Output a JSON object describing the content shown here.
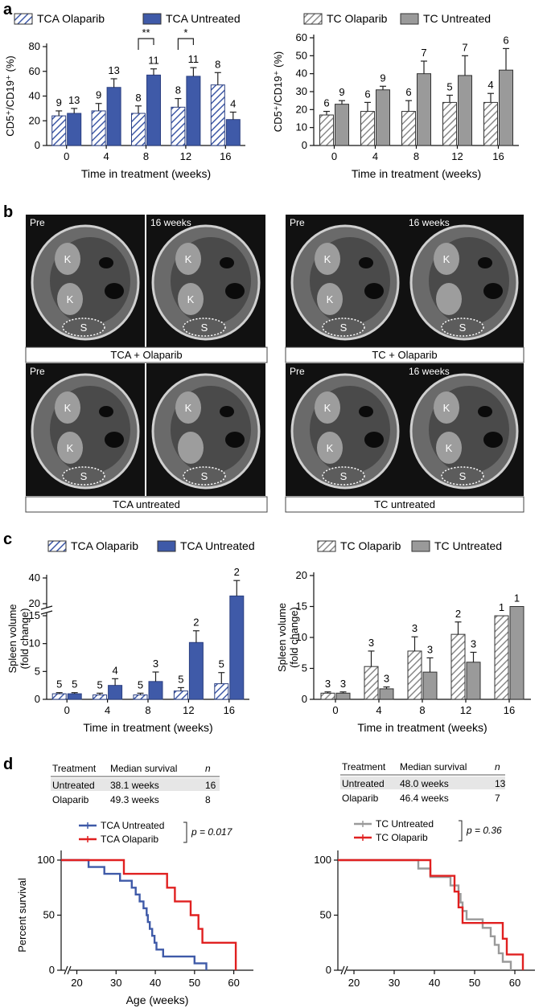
{
  "panels": {
    "a": "a",
    "b": "b",
    "c": "c",
    "d": "d"
  },
  "colors": {
    "tca": "#3f5aa8",
    "tc": "#9a9a9a",
    "untreated_line": "#3f5aa8",
    "olaparib_line": "#e02020",
    "tc_untreated_line": "#9a9a9a"
  },
  "chart_data": [
    {
      "id": "a_left",
      "type": "bar",
      "legend": [
        "TCA Olaparib",
        "TCA Untreated"
      ],
      "xlabel": "Time in treatment (weeks)",
      "ylabel": "CD5⁺/CD19⁺ (%)",
      "categories": [
        "0",
        "4",
        "8",
        "12",
        "16"
      ],
      "ylim": [
        0,
        80
      ],
      "yticks": [
        0,
        20,
        40,
        60,
        80
      ],
      "series": [
        {
          "name": "TCA Olaparib",
          "values": [
            24,
            28,
            26,
            31,
            49
          ],
          "errors": [
            4,
            6,
            6,
            7,
            10
          ],
          "n": [
            "9",
            "9",
            "8",
            "8",
            "8"
          ]
        },
        {
          "name": "TCA Untreated",
          "values": [
            26,
            47,
            57,
            56,
            21
          ],
          "errors": [
            4,
            7,
            5,
            7,
            6
          ],
          "n": [
            "13",
            "13",
            "11",
            "11",
            "4"
          ]
        }
      ],
      "significance": [
        {
          "category": "8",
          "label": "**"
        },
        {
          "category": "12",
          "label": "*"
        }
      ]
    },
    {
      "id": "a_right",
      "type": "bar",
      "legend": [
        "TC Olaparib",
        "TC Untreated"
      ],
      "xlabel": "Time in treatment (weeks)",
      "ylabel": "CD5⁺/CD19⁺ (%)",
      "categories": [
        "0",
        "4",
        "8",
        "12",
        "16"
      ],
      "ylim": [
        0,
        60
      ],
      "yticks": [
        0,
        10,
        20,
        30,
        40,
        50,
        60
      ],
      "series": [
        {
          "name": "TC Olaparib",
          "values": [
            17,
            19,
            19,
            24,
            24
          ],
          "errors": [
            2,
            5,
            6,
            4,
            5
          ],
          "n": [
            "6",
            "6",
            "6",
            "5",
            "4"
          ]
        },
        {
          "name": "TC Untreated",
          "values": [
            23,
            31,
            40,
            39,
            42
          ],
          "errors": [
            2,
            2,
            7,
            11,
            12
          ],
          "n": [
            "9",
            "9",
            "7",
            "7",
            "6"
          ]
        }
      ]
    },
    {
      "id": "c_left",
      "type": "bar",
      "legend": [
        "TCA Olaparib",
        "TCA Untreated"
      ],
      "xlabel": "Time in treatment (weeks)",
      "ylabel": "Spleen volume (fold change)",
      "categories": [
        "0",
        "4",
        "8",
        "12",
        "16"
      ],
      "ylim": [
        0,
        40
      ],
      "yticks": [
        "0",
        "5",
        "10",
        "15",
        "20",
        "40"
      ],
      "axis_break": [
        15,
        20
      ],
      "series": [
        {
          "name": "TCA Olaparib",
          "values": [
            1.0,
            0.8,
            0.8,
            1.5,
            2.8
          ],
          "errors": [
            0.2,
            0.3,
            0.3,
            0.6,
            2.0
          ],
          "n": [
            "5",
            "5",
            "5",
            "5",
            "5"
          ]
        },
        {
          "name": "TCA Untreated",
          "values": [
            1.0,
            2.5,
            3.2,
            10.2,
            26
          ],
          "errors": [
            0.2,
            1.2,
            1.7,
            2.1,
            12
          ],
          "n": [
            "5",
            "4",
            "3",
            "2",
            "2"
          ]
        }
      ]
    },
    {
      "id": "c_right",
      "type": "bar",
      "legend": [
        "TC Olaparib",
        "TC Untreated"
      ],
      "xlabel": "Time in treatment (weeks)",
      "ylabel": "Spleen volume (fold change)",
      "categories": [
        "0",
        "4",
        "8",
        "12",
        "16"
      ],
      "ylim": [
        0,
        20
      ],
      "yticks": [
        0,
        5,
        10,
        15,
        20
      ],
      "series": [
        {
          "name": "TC Olaparib",
          "values": [
            1.0,
            5.3,
            7.8,
            10.5,
            13.5
          ],
          "errors": [
            0.2,
            2.5,
            2.3,
            2.0,
            0
          ],
          "n": [
            "3",
            "3",
            "3",
            "2",
            "1"
          ]
        },
        {
          "name": "TC Untreated",
          "values": [
            1.0,
            1.7,
            4.4,
            6.0,
            15
          ],
          "errors": [
            0.2,
            0.3,
            2.3,
            1.6,
            0
          ],
          "n": [
            "3",
            "3",
            "3",
            "3",
            "1"
          ]
        }
      ]
    },
    {
      "id": "d_left",
      "type": "line",
      "subtype": "kaplan-meier",
      "xlabel": "Age (weeks)",
      "ylabel": "Percent survival",
      "xlim": [
        16,
        65
      ],
      "xticks": [
        20,
        30,
        40,
        50,
        60
      ],
      "ylim": [
        0,
        100
      ],
      "yticks": [
        0,
        50,
        100
      ],
      "pvalue": "p = 0.017",
      "table": {
        "headers": [
          "Treatment",
          "Median survival",
          "n"
        ],
        "rows": [
          [
            "Untreated",
            "38.1 weeks",
            "16"
          ],
          [
            "Olaparib",
            "49.3 weeks",
            "8"
          ]
        ]
      },
      "series": [
        {
          "name": "TCA Untreated",
          "color": "#3f5aa8",
          "steps": [
            [
              16,
              100
            ],
            [
              23,
              100
            ],
            [
              23,
              93.75
            ],
            [
              27,
              93.75
            ],
            [
              27,
              87.5
            ],
            [
              31,
              87.5
            ],
            [
              31,
              81.25
            ],
            [
              34,
              81.25
            ],
            [
              34,
              75
            ],
            [
              35,
              75
            ],
            [
              35,
              68.75
            ],
            [
              36,
              68.75
            ],
            [
              36,
              62.5
            ],
            [
              37,
              62.5
            ],
            [
              37,
              56.25
            ],
            [
              37.8,
              56.25
            ],
            [
              37.8,
              50
            ],
            [
              38.1,
              50
            ],
            [
              38.1,
              43.75
            ],
            [
              38.6,
              43.75
            ],
            [
              38.6,
              37.5
            ],
            [
              39.2,
              37.5
            ],
            [
              39.2,
              31.25
            ],
            [
              39.8,
              31.25
            ],
            [
              39.8,
              25
            ],
            [
              40.3,
              25
            ],
            [
              40.3,
              18.75
            ],
            [
              42,
              18.75
            ],
            [
              42,
              12.5
            ],
            [
              50,
              12.5
            ],
            [
              50,
              6.25
            ],
            [
              53,
              6.25
            ],
            [
              53,
              0
            ]
          ]
        },
        {
          "name": "TCA Olaparib",
          "color": "#e02020",
          "steps": [
            [
              16,
              100
            ],
            [
              32,
              100
            ],
            [
              32,
              87.5
            ],
            [
              43,
              87.5
            ],
            [
              43,
              75
            ],
            [
              45,
              75
            ],
            [
              45,
              62.5
            ],
            [
              49,
              62.5
            ],
            [
              49,
              50
            ],
            [
              51,
              50
            ],
            [
              51,
              37.5
            ],
            [
              52,
              37.5
            ],
            [
              52,
              25
            ],
            [
              60.5,
              25
            ],
            [
              60.5,
              0
            ]
          ]
        }
      ]
    },
    {
      "id": "d_right",
      "type": "line",
      "subtype": "kaplan-meier",
      "xlabel": "",
      "ylabel": "",
      "xlim": [
        16,
        65
      ],
      "xticks": [
        20,
        30,
        40,
        50,
        60
      ],
      "ylim": [
        0,
        100
      ],
      "yticks": [
        0,
        50,
        100
      ],
      "pvalue": "p = 0.36",
      "table": {
        "headers": [
          "Treatment",
          "Median survival",
          "n"
        ],
        "rows": [
          [
            "Untreated",
            "48.0 weeks",
            "13"
          ],
          [
            "Olaparib",
            "46.4 weeks",
            "7"
          ]
        ]
      },
      "series": [
        {
          "name": "TC Untreated",
          "color": "#9a9a9a",
          "steps": [
            [
              16,
              100
            ],
            [
              36,
              100
            ],
            [
              36,
              92.3
            ],
            [
              39,
              92.3
            ],
            [
              39,
              84.6
            ],
            [
              44,
              84.6
            ],
            [
              44,
              76.9
            ],
            [
              46,
              76.9
            ],
            [
              46,
              69.2
            ],
            [
              46.5,
              69.2
            ],
            [
              46.5,
              61.5
            ],
            [
              47,
              61.5
            ],
            [
              47,
              53.8
            ],
            [
              48,
              53.8
            ],
            [
              48,
              46.2
            ],
            [
              52,
              46.2
            ],
            [
              52,
              38.5
            ],
            [
              54,
              38.5
            ],
            [
              54,
              30.8
            ],
            [
              55,
              30.8
            ],
            [
              55,
              23.1
            ],
            [
              56,
              23.1
            ],
            [
              56,
              15.4
            ],
            [
              57,
              15.4
            ],
            [
              57,
              7.7
            ],
            [
              59,
              7.7
            ],
            [
              59,
              0
            ]
          ]
        },
        {
          "name": "TC Olaparib",
          "color": "#e02020",
          "steps": [
            [
              16,
              100
            ],
            [
              39,
              100
            ],
            [
              39,
              85.7
            ],
            [
              45,
              85.7
            ],
            [
              45,
              71.4
            ],
            [
              46,
              71.4
            ],
            [
              46,
              57.1
            ],
            [
              47,
              57.1
            ],
            [
              47,
              42.9
            ],
            [
              57,
              42.9
            ],
            [
              57,
              28.6
            ],
            [
              58,
              28.6
            ],
            [
              58,
              14.3
            ],
            [
              62,
              14.3
            ],
            [
              62,
              0
            ]
          ]
        }
      ]
    }
  ],
  "mri": {
    "cells": [
      {
        "tag": "Pre",
        "labels": [
          "K",
          "K",
          "S"
        ]
      },
      {
        "tag": "16 weeks",
        "labels": [
          "K",
          "K",
          "S"
        ]
      },
      {
        "tag": "Pre",
        "labels": [
          "K",
          "K",
          "S"
        ]
      },
      {
        "tag": "16 weeks",
        "labels": [
          "K",
          "S"
        ]
      },
      {
        "tag": "Pre",
        "labels": [
          "K",
          "K",
          "S"
        ]
      },
      {
        "tag": "",
        "labels": [
          "K",
          "S"
        ]
      },
      {
        "tag": "Pre",
        "labels": [
          "K",
          "K",
          "S"
        ]
      },
      {
        "tag": "16 weeks",
        "labels": [
          "K",
          "K",
          "S"
        ]
      }
    ],
    "captions": [
      "TCA + Olaparib",
      "TC + Olaparib",
      "TCA untreated",
      "TC untreated"
    ]
  }
}
